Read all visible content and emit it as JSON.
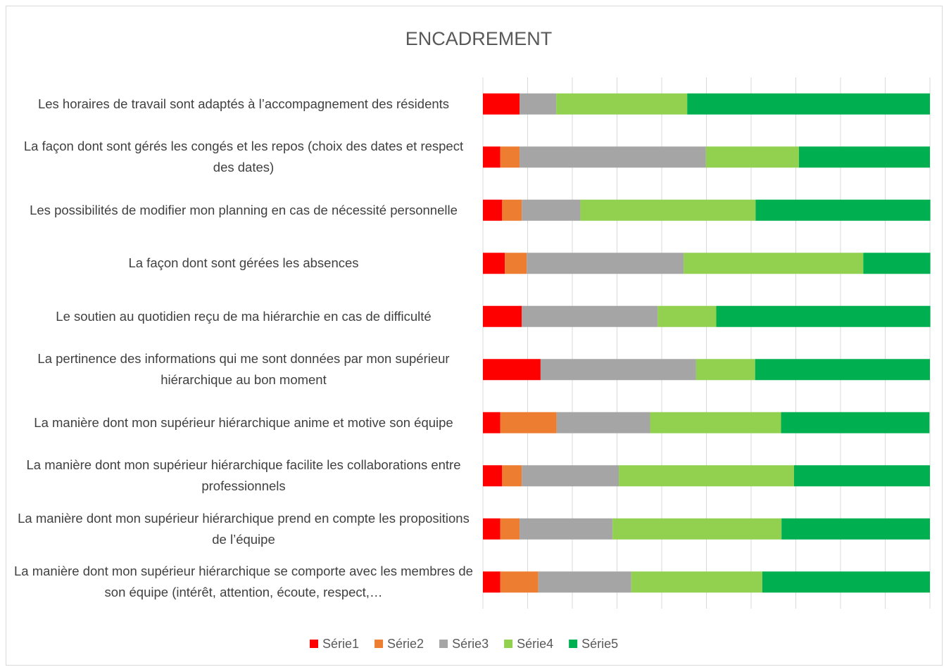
{
  "chart_data": {
    "type": "stacked-bar-horizontal",
    "title": "ENCADREMENT",
    "categories": [
      "Les horaires de travail sont adaptés à l’accompagnement des résidents",
      "La façon dont sont gérés les congés et les repos (choix des dates et respect des dates)",
      "Les possibilités de modifier mon planning en cas de nécessité personnelle",
      "La façon dont sont gérées les absences",
      "Le soutien au quotidien reçu de ma hiérarchie en cas de difficulté",
      "La pertinence des informations qui me sont données par mon supérieur hiérarchique au bon moment",
      "La manière dont mon supérieur hiérarchique anime et motive son équipe",
      "La manière dont mon supérieur hiérarchique facilite les collaborations entre professionnels",
      "La manière dont mon supérieur hiérarchique prend en compte les propositions de l’équipe",
      "La manière dont mon supérieur hiérarchique se comporte avec les membres de son équipe (intérêt, attention, écoute, respect,…"
    ],
    "series": [
      {
        "name": "Série1",
        "color": "#ff0000",
        "values": [
          8.2,
          3.9,
          4.3,
          4.9,
          8.7,
          12.9,
          3.9,
          4.3,
          3.9,
          3.9
        ]
      },
      {
        "name": "Série2",
        "color": "#ed7d31",
        "values": [
          0,
          4.3,
          4.4,
          4.9,
          0,
          0,
          12.6,
          4.4,
          4.3,
          8.5
        ]
      },
      {
        "name": "Série3",
        "color": "#a5a5a5",
        "values": [
          8.2,
          41.7,
          13.1,
          35.1,
          30.4,
          34.8,
          20.9,
          21.7,
          20.8,
          20.8
        ]
      },
      {
        "name": "Série4",
        "color": "#92d050",
        "values": [
          29.3,
          20.8,
          39.2,
          40.2,
          13.1,
          13.2,
          29.3,
          39.2,
          37.8,
          29.3
        ]
      },
      {
        "name": "Série5",
        "color": "#00b050",
        "values": [
          54.3,
          29.3,
          39.1,
          15.0,
          47.9,
          39.1,
          33.2,
          30.4,
          33.2,
          37.5
        ]
      }
    ],
    "xlim": [
      0,
      100
    ],
    "xticks": [
      0,
      10,
      20,
      30,
      40,
      50,
      60,
      70,
      80,
      90,
      100
    ],
    "grid": true,
    "legend": "bottom"
  }
}
